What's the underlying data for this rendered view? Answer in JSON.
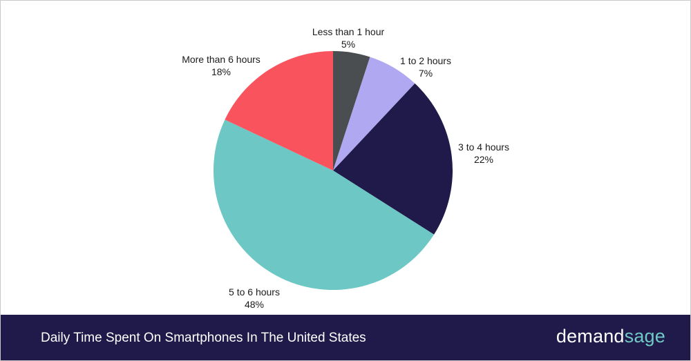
{
  "chart_data": {
    "type": "pie",
    "title": "Daily Time Spent On Smartphones In The United States",
    "start_angle_deg": 0,
    "direction": "clockwise",
    "slices": [
      {
        "label": "Less than 1 hour",
        "value": 5,
        "pct_label": "5%",
        "color": "#4a4e51"
      },
      {
        "label": "1 to 2 hours",
        "value": 7,
        "pct_label": "7%",
        "color": "#b1a8f2"
      },
      {
        "label": "3 to 4 hours",
        "value": 22,
        "pct_label": "22%",
        "color": "#201a4a"
      },
      {
        "label": "5 to 6 hours",
        "value": 48,
        "pct_label": "48%",
        "color": "#6dc8c5"
      },
      {
        "label": "More than 6 hours",
        "value": 18,
        "pct_label": "18%",
        "color": "#f9535e"
      }
    ]
  },
  "footer": {
    "title": "Daily Time Spent On Smartphones In The United States",
    "background": "#201a4a"
  },
  "brand": {
    "part1": "demand",
    "part2": "sage",
    "accent": "#6fc9c5"
  }
}
